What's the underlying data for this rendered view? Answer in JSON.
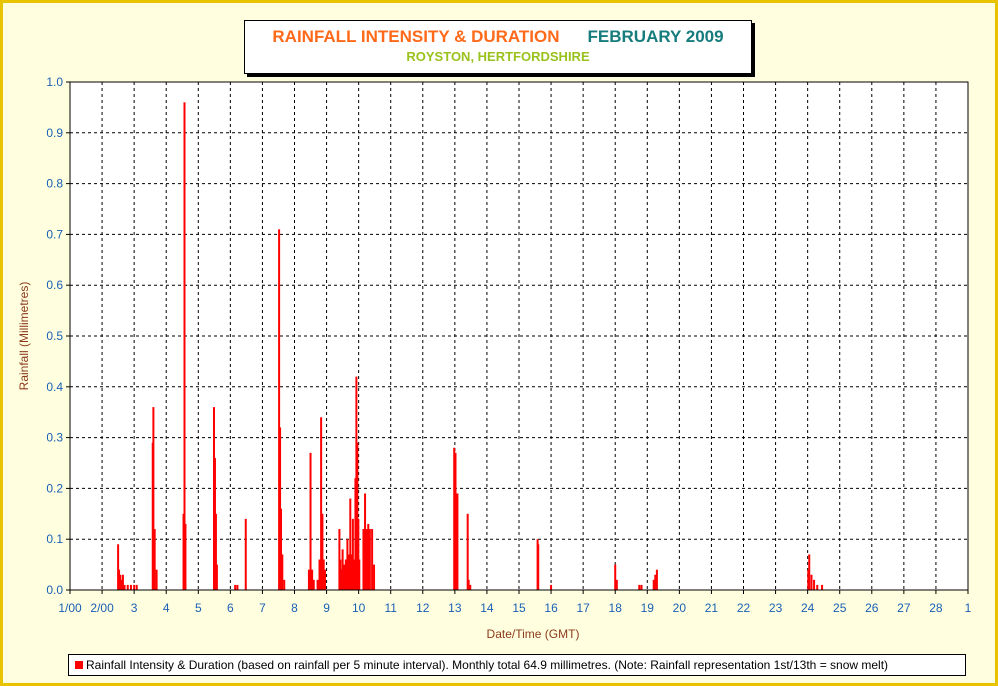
{
  "title": {
    "main": "RAINFALL INTENSITY & DURATION",
    "month": "FEBRUARY 2009",
    "subtitle": "ROYSTON, HERTFORDSHIRE"
  },
  "legend": {
    "label": "Rainfall Intensity & Duration (based on rainfall per 5 minute interval). Monthly total 64.9 millimetres. (Note: Rainfall representation 1st/13th = snow melt)"
  },
  "colors": {
    "frame_border": "#e8c400",
    "background": "#ffffe0",
    "bar": "#ff0000",
    "axis_text": "#1a5fb4",
    "axis_title": "#8b3a1a"
  },
  "chart_data": {
    "type": "bar",
    "xlabel": "Date/Time (GMT)",
    "ylabel": "Rainfall (Millimetres)",
    "ylim": [
      0,
      1.0
    ],
    "xlim": [
      1,
      29
    ],
    "y_ticks": [
      "0.0",
      "0.1",
      "0.2",
      "0.3",
      "0.4",
      "0.5",
      "0.6",
      "0.7",
      "0.8",
      "0.9",
      "1.0"
    ],
    "x_ticks": [
      "1/00",
      "2/00",
      "3",
      "4",
      "5",
      "6",
      "7",
      "8",
      "9",
      "10",
      "11",
      "12",
      "13",
      "14",
      "15",
      "16",
      "17",
      "18",
      "19",
      "20",
      "21",
      "22",
      "23",
      "24",
      "25",
      "26",
      "27",
      "28",
      "1"
    ],
    "grid": true,
    "legend_position": "bottom",
    "series": [
      {
        "name": "Rainfall Intensity & Duration",
        "points": [
          [
            2.5,
            0.09
          ],
          [
            2.53,
            0.04
          ],
          [
            2.57,
            0.03
          ],
          [
            2.6,
            0.02
          ],
          [
            2.65,
            0.03
          ],
          [
            2.7,
            0.01
          ],
          [
            2.8,
            0.01
          ],
          [
            2.9,
            0.01
          ],
          [
            3.0,
            0.01
          ],
          [
            3.08,
            0.01
          ],
          [
            3.58,
            0.29
          ],
          [
            3.6,
            0.36
          ],
          [
            3.64,
            0.12
          ],
          [
            3.7,
            0.04
          ],
          [
            4.54,
            0.15
          ],
          [
            4.57,
            0.96
          ],
          [
            4.6,
            0.13
          ],
          [
            5.49,
            0.36
          ],
          [
            5.52,
            0.26
          ],
          [
            5.55,
            0.15
          ],
          [
            5.58,
            0.05
          ],
          [
            6.15,
            0.01
          ],
          [
            6.22,
            0.01
          ],
          [
            6.48,
            0.14
          ],
          [
            7.52,
            0.71
          ],
          [
            7.55,
            0.32
          ],
          [
            7.58,
            0.16
          ],
          [
            7.62,
            0.07
          ],
          [
            7.68,
            0.02
          ],
          [
            8.45,
            0.04
          ],
          [
            8.5,
            0.27
          ],
          [
            8.55,
            0.04
          ],
          [
            8.6,
            0.02
          ],
          [
            8.72,
            0.02
          ],
          [
            8.78,
            0.06
          ],
          [
            8.83,
            0.34
          ],
          [
            8.87,
            0.15
          ],
          [
            8.91,
            0.06
          ],
          [
            8.95,
            0.04
          ],
          [
            9.4,
            0.12
          ],
          [
            9.43,
            0.06
          ],
          [
            9.47,
            0.04
          ],
          [
            9.5,
            0.08
          ],
          [
            9.55,
            0.05
          ],
          [
            9.6,
            0.06
          ],
          [
            9.65,
            0.1
          ],
          [
            9.7,
            0.07
          ],
          [
            9.74,
            0.18
          ],
          [
            9.78,
            0.07
          ],
          [
            9.82,
            0.14
          ],
          [
            9.86,
            0.06
          ],
          [
            9.9,
            0.22
          ],
          [
            9.93,
            0.42
          ],
          [
            9.96,
            0.29
          ],
          [
            9.99,
            0.14
          ],
          [
            10.02,
            0.06
          ],
          [
            10.15,
            0.12
          ],
          [
            10.2,
            0.19
          ],
          [
            10.25,
            0.12
          ],
          [
            10.3,
            0.13
          ],
          [
            10.35,
            0.12
          ],
          [
            10.42,
            0.12
          ],
          [
            10.48,
            0.05
          ],
          [
            12.98,
            0.28
          ],
          [
            13.02,
            0.27
          ],
          [
            13.08,
            0.19
          ],
          [
            13.4,
            0.15
          ],
          [
            13.43,
            0.02
          ],
          [
            13.48,
            0.01
          ],
          [
            15.58,
            0.1
          ],
          [
            15.6,
            0.09
          ],
          [
            16.0,
            0.01
          ],
          [
            18.0,
            0.05
          ],
          [
            18.05,
            0.02
          ],
          [
            18.75,
            0.01
          ],
          [
            18.82,
            0.01
          ],
          [
            19.2,
            0.02
          ],
          [
            19.25,
            0.03
          ],
          [
            19.3,
            0.04
          ],
          [
            24.02,
            0.04
          ],
          [
            24.05,
            0.07
          ],
          [
            24.12,
            0.03
          ],
          [
            24.2,
            0.02
          ],
          [
            24.3,
            0.01
          ],
          [
            24.45,
            0.01
          ]
        ]
      }
    ]
  }
}
